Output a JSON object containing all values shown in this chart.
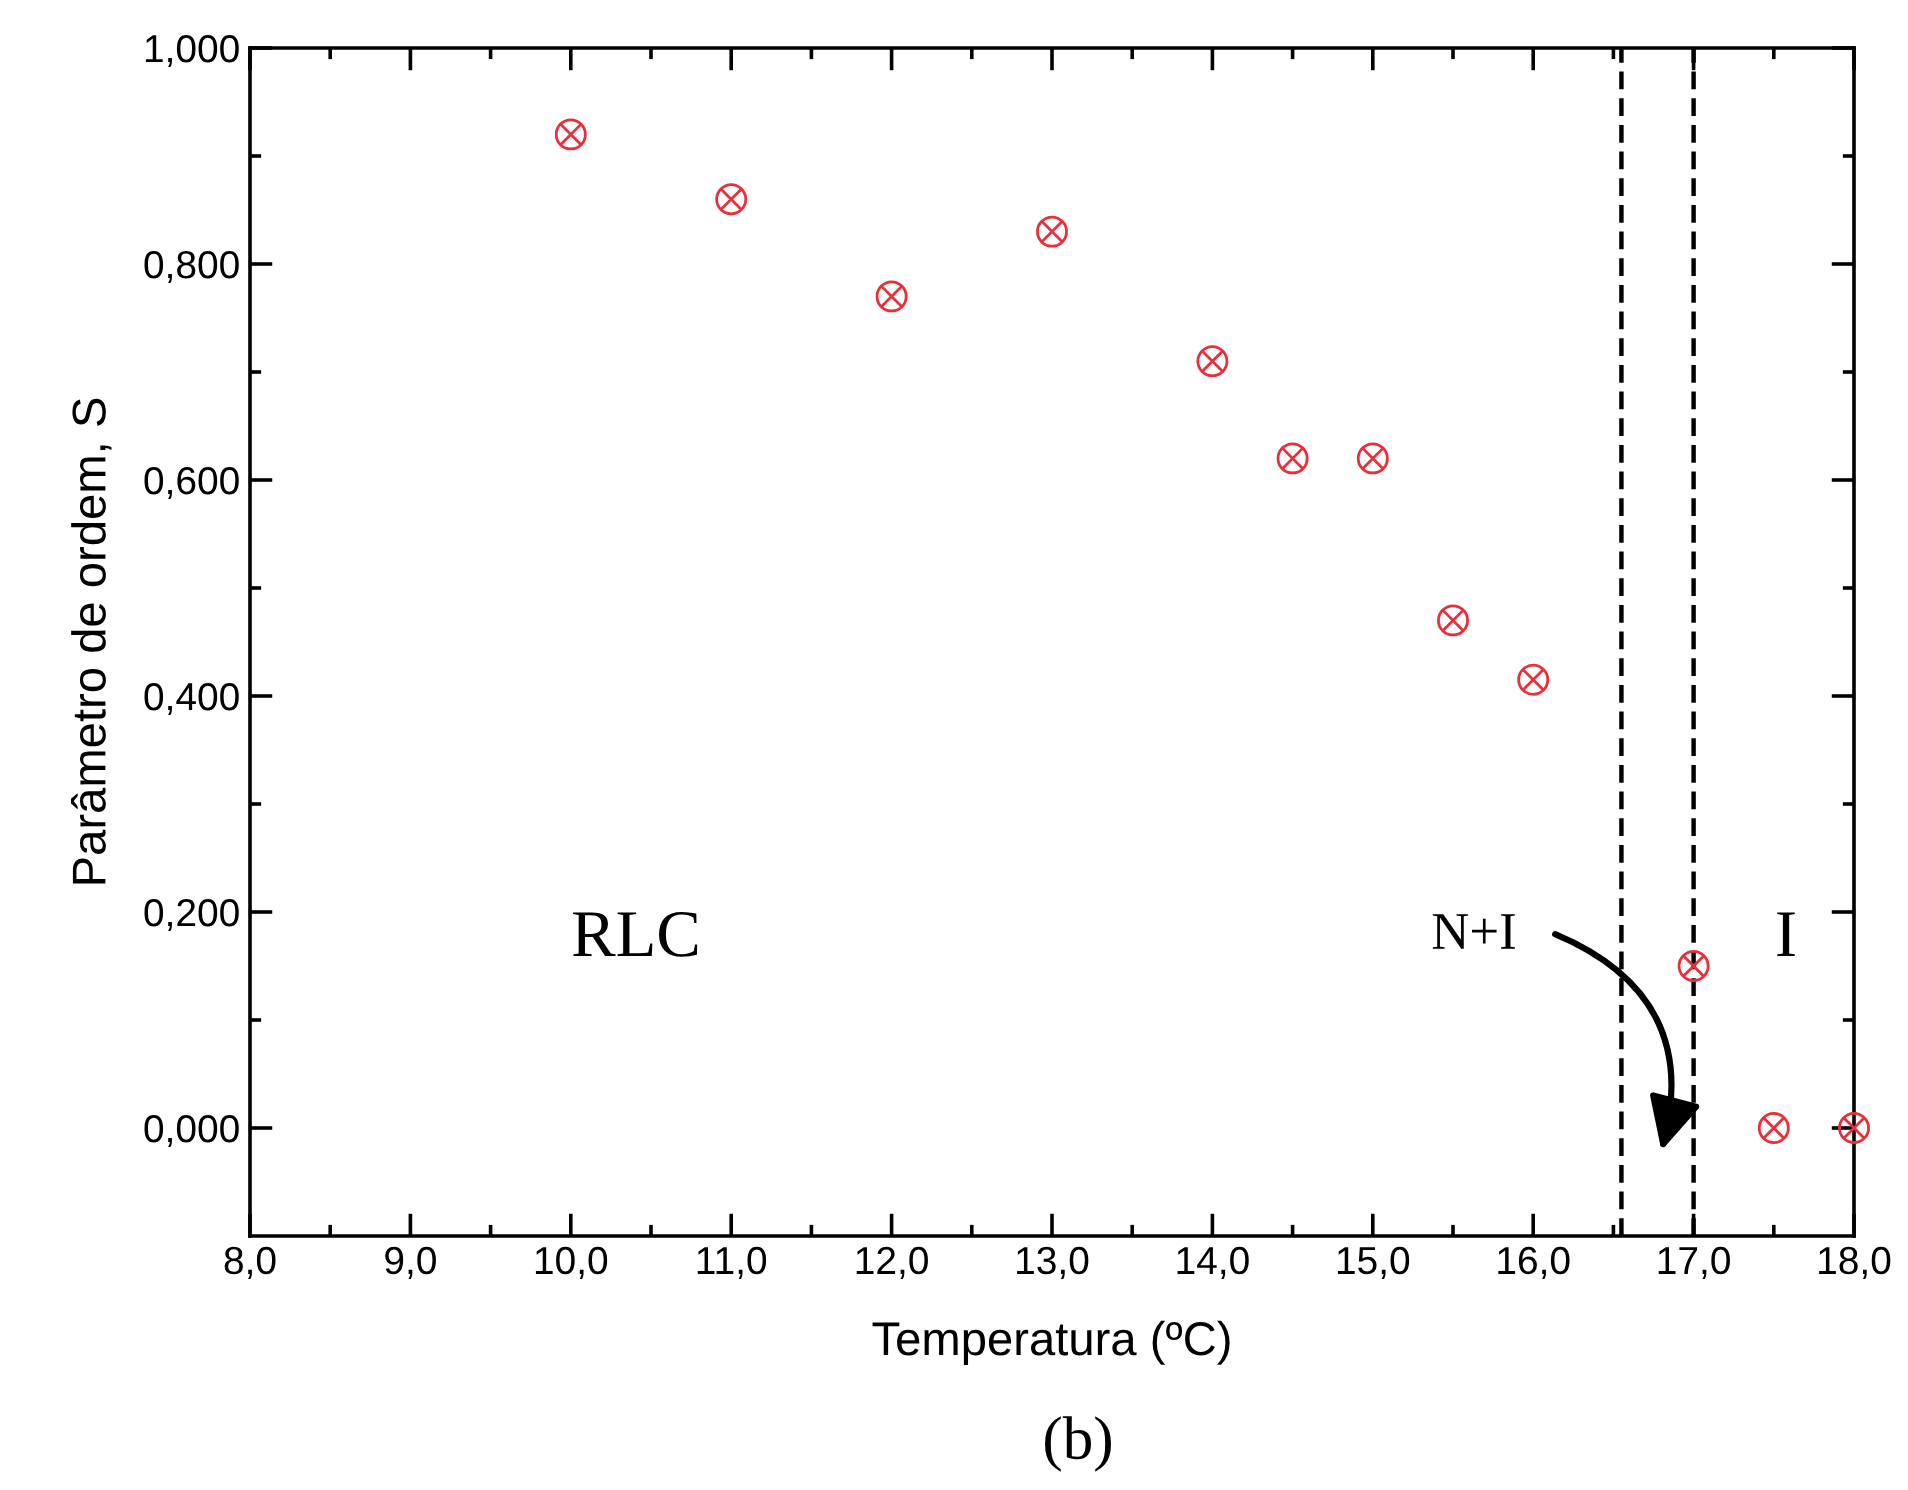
{
  "chart_data": {
    "type": "scatter",
    "xlabel": "Temperatura (ºC)",
    "ylabel": "Parâmetro de ordem, S",
    "x": [
      10.0,
      11.0,
      12.0,
      13.0,
      14.0,
      14.5,
      15.0,
      15.5,
      16.0,
      17.0,
      17.5,
      18.0
    ],
    "series": [
      {
        "color": "#e8303a",
        "values": [
          0.92,
          0.86,
          0.77,
          0.83,
          0.71,
          0.62,
          0.62,
          0.47,
          0.415,
          0.15,
          0.0,
          0.0
        ]
      }
    ],
    "marker": "circle",
    "xlim": [
      8.0,
      18.0
    ],
    "xticks": [
      {
        "value": 8,
        "label": "8,0"
      },
      {
        "value": 9,
        "label": "9,0"
      },
      {
        "value": 10,
        "label": "10,0"
      },
      {
        "value": 11,
        "label": "11,0"
      },
      {
        "value": 12,
        "label": "12,0"
      },
      {
        "value": 13,
        "label": "13,0"
      },
      {
        "value": 14,
        "label": "14,0"
      },
      {
        "value": 15,
        "label": "15,0"
      },
      {
        "value": 16,
        "label": "16,0"
      },
      {
        "value": 17,
        "label": "17,0"
      },
      {
        "value": 18,
        "label": "18,0"
      }
    ],
    "ylim": [
      -0.1,
      1.0
    ],
    "yticks": [
      {
        "value": 0,
        "label": "0,000"
      },
      {
        "value": 0.2,
        "label": "0,200"
      },
      {
        "value": 0.4,
        "label": "0,400"
      },
      {
        "value": 0.6,
        "label": "0,600"
      },
      {
        "value": 0.8,
        "label": "0,800"
      },
      {
        "value": 1.0,
        "label": "1,000"
      }
    ],
    "ref_lines": [
      {
        "axis": "x",
        "value": 16.55,
        "color": "#000000",
        "line_style": "dashed"
      },
      {
        "axis": "x",
        "value": 17.0,
        "color": "#000000",
        "line_style": "dashed"
      }
    ],
    "annotations": [
      "RLC",
      "I",
      "N+I",
      "(b)"
    ],
    "grid": false,
    "legend": false
  }
}
